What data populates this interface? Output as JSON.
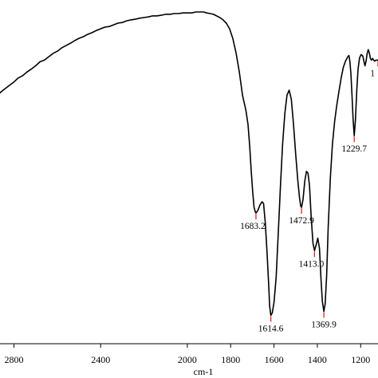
{
  "chart_data": {
    "type": "line",
    "title": "",
    "xlabel": "cm-1",
    "ylabel": "",
    "x_reversed": true,
    "xlim": [
      3100,
      1120
    ],
    "ylim": [
      0,
      100
    ],
    "grid": false,
    "legend": "none",
    "x_ticks": [
      {
        "value": 2800,
        "label": "2800"
      },
      {
        "value": 2400,
        "label": "2400"
      },
      {
        "value": 2000,
        "label": "2000"
      },
      {
        "value": 1800,
        "label": "1800"
      },
      {
        "value": 1600,
        "label": "1600"
      },
      {
        "value": 1400,
        "label": "1400"
      },
      {
        "value": 1200,
        "label": "1200"
      }
    ],
    "series": [
      {
        "color": "#000000",
        "points": [
          [
            3100,
            56.5
          ],
          [
            3085,
            55.2
          ],
          [
            3070,
            56.9
          ],
          [
            3055,
            60.3
          ],
          [
            3040,
            62.7
          ],
          [
            3020,
            63.4
          ],
          [
            3000,
            65.3
          ],
          [
            2980,
            67.3
          ],
          [
            2960,
            68.3
          ],
          [
            2940,
            70.2
          ],
          [
            2920,
            71.2
          ],
          [
            2900,
            72.4
          ],
          [
            2880,
            73.4
          ],
          [
            2850,
            75.1
          ],
          [
            2820,
            76.6
          ],
          [
            2800,
            77.6
          ],
          [
            2780,
            78.8
          ],
          [
            2760,
            79.5
          ],
          [
            2740,
            80.6
          ],
          [
            2720,
            81.5
          ],
          [
            2700,
            82.5
          ],
          [
            2680,
            83.7
          ],
          [
            2660,
            84.2
          ],
          [
            2640,
            85.2
          ],
          [
            2620,
            86.2
          ],
          [
            2600,
            86.9
          ],
          [
            2580,
            87.9
          ],
          [
            2560,
            88.6
          ],
          [
            2540,
            89.3
          ],
          [
            2520,
            90.1
          ],
          [
            2500,
            90.8
          ],
          [
            2480,
            91.3
          ],
          [
            2460,
            92.0
          ],
          [
            2440,
            92.5
          ],
          [
            2420,
            93.2
          ],
          [
            2400,
            93.7
          ],
          [
            2380,
            94.2
          ],
          [
            2360,
            94.4
          ],
          [
            2340,
            94.9
          ],
          [
            2320,
            95.4
          ],
          [
            2300,
            95.6
          ],
          [
            2280,
            96.1
          ],
          [
            2260,
            96.4
          ],
          [
            2240,
            96.6
          ],
          [
            2220,
            96.9
          ],
          [
            2200,
            97.1
          ],
          [
            2180,
            97.3
          ],
          [
            2160,
            97.6
          ],
          [
            2140,
            97.6
          ],
          [
            2120,
            97.8
          ],
          [
            2100,
            98.1
          ],
          [
            2080,
            98.1
          ],
          [
            2060,
            98.3
          ],
          [
            2040,
            98.3
          ],
          [
            2020,
            98.5
          ],
          [
            2000,
            98.5
          ],
          [
            1980,
            98.5
          ],
          [
            1960,
            98.8
          ],
          [
            1940,
            98.8
          ],
          [
            1925,
            98.8
          ],
          [
            1910,
            98.5
          ],
          [
            1895,
            98.3
          ],
          [
            1880,
            98.1
          ],
          [
            1865,
            97.6
          ],
          [
            1850,
            97.1
          ],
          [
            1835,
            96.4
          ],
          [
            1820,
            95.4
          ],
          [
            1805,
            93.7
          ],
          [
            1790,
            90.8
          ],
          [
            1775,
            86.4
          ],
          [
            1760,
            80.6
          ],
          [
            1745,
            73.4
          ],
          [
            1730,
            69.1
          ],
          [
            1720,
            64.7
          ],
          [
            1712,
            58.2
          ],
          [
            1705,
            50.7
          ],
          [
            1698,
            44.2
          ],
          [
            1692,
            39.6
          ],
          [
            1686,
            38.2
          ],
          [
            1683.2,
            37.9
          ],
          [
            1675,
            38.6
          ],
          [
            1665,
            40.3
          ],
          [
            1655,
            41.3
          ],
          [
            1648,
            40.8
          ],
          [
            1640,
            34.8
          ],
          [
            1632,
            25.8
          ],
          [
            1625,
            16.8
          ],
          [
            1620,
            9.8
          ],
          [
            1614.6,
            6.9
          ],
          [
            1608,
            7.6
          ],
          [
            1600,
            10.8
          ],
          [
            1590,
            18.5
          ],
          [
            1580,
            32.1
          ],
          [
            1570,
            46.2
          ],
          [
            1560,
            58.9
          ],
          [
            1550,
            68.1
          ],
          [
            1540,
            73.6
          ],
          [
            1530,
            75.1
          ],
          [
            1520,
            72.4
          ],
          [
            1510,
            64.9
          ],
          [
            1500,
            56.0
          ],
          [
            1490,
            47.6
          ],
          [
            1482,
            42.5
          ],
          [
            1477,
            40.1
          ],
          [
            1472.9,
            39.6
          ],
          [
            1466,
            42.0
          ],
          [
            1458,
            47.6
          ],
          [
            1450,
            50.5
          ],
          [
            1443,
            50.0
          ],
          [
            1436,
            46.2
          ],
          [
            1428,
            36.3
          ],
          [
            1420,
            28.7
          ],
          [
            1413.0,
            26.5
          ],
          [
            1405,
            28.4
          ],
          [
            1398,
            30.3
          ],
          [
            1390,
            27.2
          ],
          [
            1383,
            18.0
          ],
          [
            1377,
            11.2
          ],
          [
            1369.9,
            8.1
          ],
          [
            1364,
            10.3
          ],
          [
            1357,
            18.9
          ],
          [
            1350,
            33.3
          ],
          [
            1340,
            48.3
          ],
          [
            1330,
            58.9
          ],
          [
            1320,
            65.8
          ],
          [
            1310,
            70.7
          ],
          [
            1300,
            74.8
          ],
          [
            1290,
            78.8
          ],
          [
            1280,
            82.0
          ],
          [
            1270,
            83.9
          ],
          [
            1260,
            85.2
          ],
          [
            1254,
            85.6
          ],
          [
            1250,
            83.9
          ],
          [
            1245,
            80.2
          ],
          [
            1240,
            73.6
          ],
          [
            1235,
            66.1
          ],
          [
            1229.7,
            61.3
          ],
          [
            1224,
            66.1
          ],
          [
            1218,
            75.1
          ],
          [
            1212,
            81.5
          ],
          [
            1205,
            84.9
          ],
          [
            1198,
            85.9
          ],
          [
            1190,
            85.4
          ],
          [
            1185,
            83.9
          ],
          [
            1180,
            82.5
          ],
          [
            1175,
            84.0
          ],
          [
            1170,
            86.2
          ],
          [
            1165,
            87.4
          ],
          [
            1160,
            86.4
          ],
          [
            1155,
            84.7
          ],
          [
            1150,
            84.2
          ],
          [
            1145,
            84.7
          ],
          [
            1140,
            84.2
          ],
          [
            1135,
            83.9
          ],
          [
            1130,
            84.2
          ],
          [
            1120,
            84.2
          ]
        ]
      }
    ],
    "annotations": [
      {
        "x": 1683.2,
        "label": "1683.2",
        "label_side": "left"
      },
      {
        "x": 1614.6,
        "label": "1614.6",
        "label_side": "center"
      },
      {
        "x": 1472.9,
        "label": "1472.9",
        "label_side": "center"
      },
      {
        "x": 1413.0,
        "label": "1413.0",
        "label_side": "left"
      },
      {
        "x": 1369.9,
        "label": "1369.9",
        "label_side": "center"
      },
      {
        "x": 1229.7,
        "label": "1229.7",
        "label_side": "center"
      },
      {
        "x": 1120,
        "label": "1",
        "label_side": "center"
      }
    ]
  }
}
